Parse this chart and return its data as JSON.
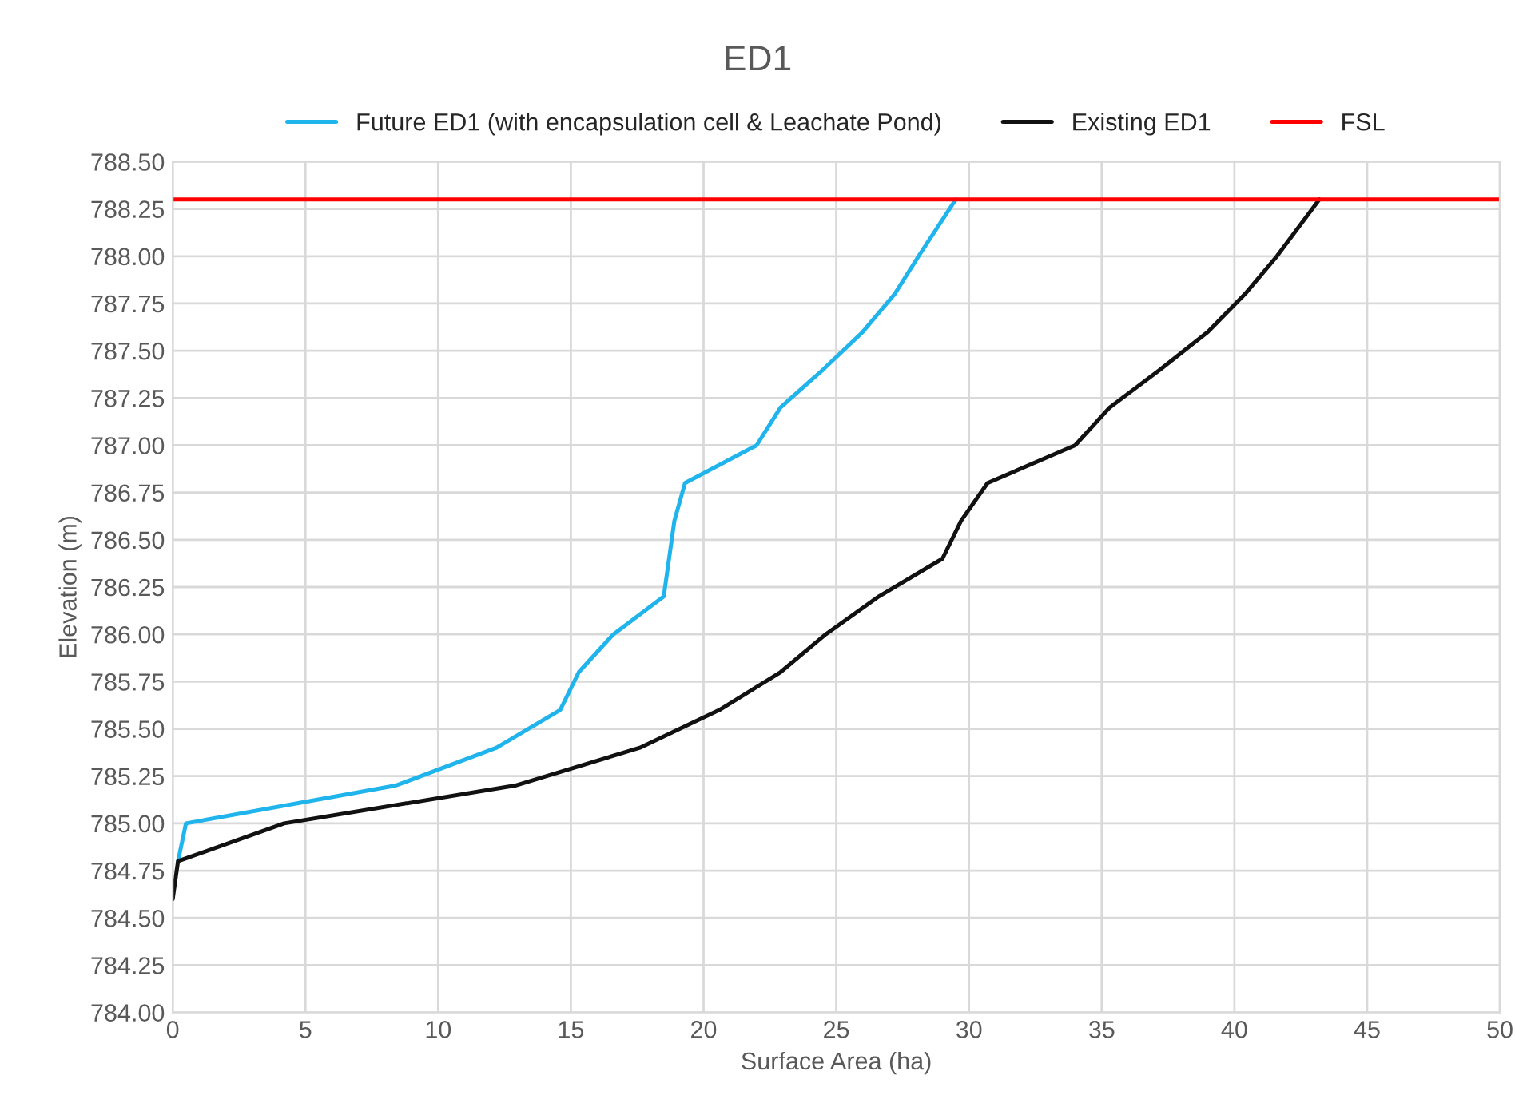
{
  "chart_data": {
    "type": "line",
    "title": "ED1",
    "xlabel": "Surface Area (ha)",
    "ylabel": "Elevation (m)",
    "xlim": [
      0,
      50
    ],
    "xticks": [
      0,
      5,
      10,
      15,
      20,
      25,
      30,
      35,
      40,
      45,
      50
    ],
    "ylim": [
      784.0,
      788.5
    ],
    "yticks": [
      {
        "value": 784.0,
        "label": "784.00"
      },
      {
        "value": 784.25,
        "label": "784.25"
      },
      {
        "value": 784.5,
        "label": "784.50"
      },
      {
        "value": 784.75,
        "label": "784.75"
      },
      {
        "value": 785.0,
        "label": "785.00"
      },
      {
        "value": 785.25,
        "label": "785.25"
      },
      {
        "value": 785.5,
        "label": "785.50"
      },
      {
        "value": 785.75,
        "label": "785.75"
      },
      {
        "value": 786.0,
        "label": "786.00"
      },
      {
        "value": 786.25,
        "label": "786.25"
      },
      {
        "value": 786.5,
        "label": "786.50"
      },
      {
        "value": 786.75,
        "label": "786.75"
      },
      {
        "value": 787.0,
        "label": "787.00"
      },
      {
        "value": 787.25,
        "label": "787.25"
      },
      {
        "value": 787.5,
        "label": "787.50"
      },
      {
        "value": 787.75,
        "label": "787.75"
      },
      {
        "value": 788.0,
        "label": "788.00"
      },
      {
        "value": 788.25,
        "label": "788.25"
      },
      {
        "value": 788.5,
        "label": "788.50"
      }
    ],
    "grid": true,
    "legend": "top",
    "marker": "none",
    "line_style": "solid",
    "series": [
      {
        "name": "Future ED1 (with encapsulation cell & Leachate Pond)",
        "color": "#1fb4ec",
        "x": [
          0.2,
          0.5,
          8.4,
          12.2,
          14.6,
          15.3,
          16.6,
          18.5,
          18.9,
          19.3,
          22.0,
          22.9,
          24.5,
          26.0,
          27.2,
          28.1,
          29.5
        ],
        "values": [
          784.8,
          785.0,
          785.2,
          785.4,
          785.6,
          785.8,
          786.0,
          786.2,
          786.6,
          786.8,
          787.0,
          787.2,
          787.4,
          787.6,
          787.8,
          788.0,
          788.3
        ]
      },
      {
        "name": "Existing ED1",
        "color": "#111111",
        "x": [
          0.0,
          0.2,
          4.2,
          12.9,
          17.6,
          20.6,
          22.9,
          24.6,
          26.6,
          29.0,
          29.7,
          30.7,
          34.0,
          35.3,
          37.2,
          39.0,
          40.4,
          41.6,
          43.2
        ],
        "values": [
          784.6,
          784.8,
          785.0,
          785.2,
          785.4,
          785.6,
          785.8,
          786.0,
          786.2,
          786.4,
          786.6,
          786.8,
          787.0,
          787.2,
          787.4,
          787.6,
          787.8,
          788.0,
          788.3
        ]
      }
    ],
    "ref_lines": [
      {
        "axis": "y",
        "value": 788.3,
        "label": "FSL",
        "color": "#ff0000",
        "line_style": "solid"
      }
    ]
  }
}
